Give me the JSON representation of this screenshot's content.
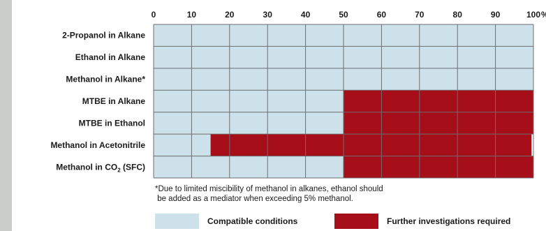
{
  "chart_data": {
    "type": "bar",
    "orientation": "horizontal-stacked-range",
    "x_ticks": [
      "0",
      "10",
      "20",
      "30",
      "40",
      "50",
      "60",
      "70",
      "80",
      "90",
      "100"
    ],
    "x_unit": "%",
    "xlim": [
      0,
      100
    ],
    "grid": true,
    "categories": [
      "2-Propanol in Alkane",
      "Ethanol in Alkane",
      "Methanol in Alkane*",
      "MTBE in Alkane",
      "MTBE in Ethanol",
      "Methanol in Acetonitrile",
      "Methanol in CO₂ (SFC)"
    ],
    "series": [
      {
        "name": "Compatible conditions",
        "color": "#cce1ea",
        "ranges": [
          [
            0,
            100
          ],
          [
            0,
            100
          ],
          [
            0,
            100
          ],
          [
            0,
            50
          ],
          [
            0,
            50
          ],
          [
            0,
            15
          ],
          [
            0,
            50
          ]
        ]
      },
      {
        "name": "Further investigations required",
        "color": "#a60f1a",
        "ranges": [
          null,
          null,
          null,
          [
            50,
            100
          ],
          [
            50,
            100
          ],
          [
            15,
            99.5
          ],
          [
            50,
            100
          ]
        ]
      }
    ]
  },
  "footnote": {
    "line1": "*Due to limited miscibility of methanol in alkanes, ethanol should",
    "line2": " be added as a mediator when exceeding 5% methanol."
  },
  "legend": {
    "compatible": "Compatible conditions",
    "further": "Further investigations required"
  }
}
